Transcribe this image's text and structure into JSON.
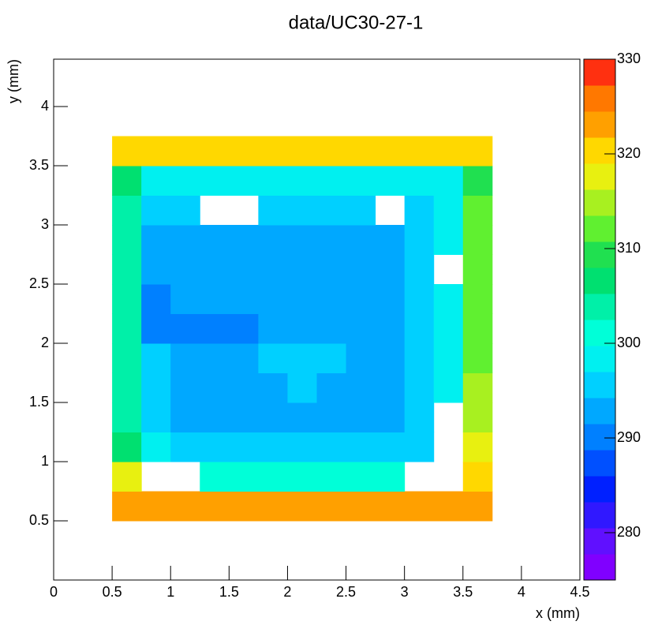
{
  "chart_data": {
    "type": "heatmap",
    "title": "data/UC30-27-1",
    "x_label": "x (mm)",
    "y_label": "y (mm)",
    "xlim": [
      0,
      4.5
    ],
    "xticks": [
      0,
      0.5,
      1,
      1.5,
      2,
      2.5,
      3,
      3.5,
      4,
      4.5
    ],
    "ylim": [
      0,
      4.4
    ],
    "yticks": [
      0.5,
      1,
      1.5,
      2,
      2.5,
      3,
      3.5,
      4
    ],
    "zlim": [
      275,
      330
    ],
    "zticks": [
      280,
      290,
      300,
      310,
      320,
      330
    ],
    "palette": [
      "#8000ff",
      "#6010ff",
      "#3018ff",
      "#0020ff",
      "#0050ff",
      "#0080ff",
      "#00a8ff",
      "#00d0ff",
      "#00f0f0",
      "#00ffd8",
      "#00f0a8",
      "#00e070",
      "#20e050",
      "#60f030",
      "#a8f020",
      "#e8f010",
      "#ffd800",
      "#ffa000",
      "#ff7800",
      "#ff3010"
    ],
    "xbins": [
      0.5,
      0.75,
      1,
      1.25,
      1.5,
      1.75,
      2,
      2.25,
      2.5,
      2.75,
      3,
      3.25,
      3.5,
      3.75
    ],
    "ybins": [
      0.5,
      0.75,
      1,
      1.25,
      1.5,
      1.75,
      2,
      2.25,
      2.5,
      2.75,
      3,
      3.25,
      3.5,
      3.75
    ],
    "z": [
      [
        322,
        322,
        322,
        322,
        322,
        322,
        322,
        322,
        322,
        322,
        322,
        322,
        322
      ],
      [
        318,
        null,
        null,
        302,
        302,
        302,
        302,
        302,
        302,
        302,
        null,
        null,
        320
      ],
      [
        306,
        298,
        295,
        295,
        295,
        295,
        295,
        295,
        295,
        295,
        296,
        null,
        318
      ],
      [
        305,
        296,
        294,
        294,
        294,
        294,
        294,
        294,
        294,
        294,
        295,
        null,
        316
      ],
      [
        305,
        296,
        294,
        294,
        294,
        294,
        295,
        294,
        294,
        294,
        295,
        298,
        314
      ],
      [
        305,
        296,
        294,
        294,
        294,
        295,
        295,
        295,
        294,
        294,
        295,
        298,
        312
      ],
      [
        304,
        289,
        289,
        290,
        291,
        292,
        293,
        294,
        294,
        294,
        295,
        298,
        312
      ],
      [
        304,
        291,
        294,
        294,
        294,
        294,
        294,
        294,
        294,
        294,
        295,
        298,
        312
      ],
      [
        304,
        294,
        294,
        294,
        294,
        294,
        294,
        294,
        294,
        294,
        295,
        null,
        312
      ],
      [
        305,
        294,
        294,
        294,
        294,
        294,
        294,
        294,
        294,
        294,
        295,
        298,
        312
      ],
      [
        305,
        295,
        295,
        null,
        null,
        295,
        295,
        295,
        295,
        null,
        295,
        298,
        312
      ],
      [
        306,
        298,
        297,
        297,
        297,
        297,
        297,
        297,
        297,
        297,
        297,
        298,
        310
      ],
      [
        320,
        320,
        320,
        320,
        320,
        320,
        320,
        320,
        320,
        320,
        320,
        320,
        320
      ]
    ]
  }
}
